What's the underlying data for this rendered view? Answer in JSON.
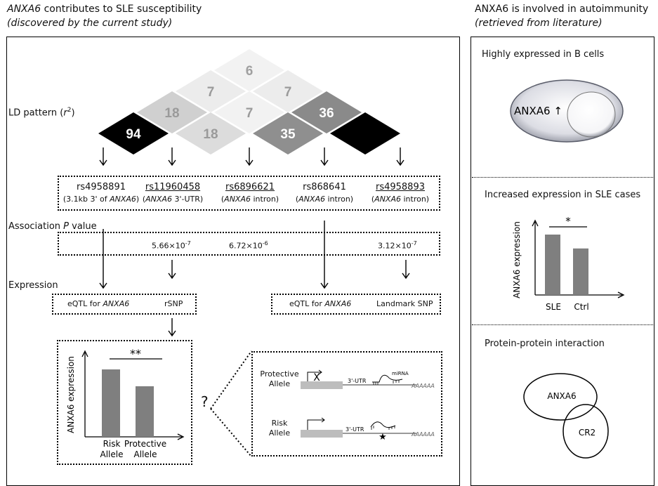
{
  "left_header": {
    "gene": "ANXA6",
    "title_rest": " contributes to SLE susceptibility",
    "subtitle": "(discovered by the current study)"
  },
  "right_header": {
    "title": "ANXA6 is involved in autoimmunity",
    "subtitle": "(retrieved from literature)"
  },
  "ld": {
    "label": "LD pattern (",
    "label_r": "r",
    "label_sup": "2",
    "label_close": ")",
    "values": {
      "top": "6",
      "r2a": "7",
      "r2b": "7",
      "r3a": "18",
      "r3b": "7",
      "r3c": "36",
      "r4a": "94",
      "r4b": "18",
      "r4c": "35",
      "r4d": ""
    }
  },
  "snps": [
    {
      "id": "rs4958891",
      "note_pre": "(3.1kb 3' of ",
      "note_gene": "ANXA6",
      "note_post": ")",
      "underline": false
    },
    {
      "id": "rs11960458",
      "note_pre": "(",
      "note_gene": "ANXA6",
      "note_post": " 3'-UTR)",
      "underline": true
    },
    {
      "id": "rs6896621",
      "note_pre": "(",
      "note_gene": "ANXA6",
      "note_post": " intron)",
      "underline": true
    },
    {
      "id": "rs868641",
      "note_pre": "(",
      "note_gene": "ANXA6",
      "note_post": " intron)",
      "underline": false
    },
    {
      "id": "rs4958893",
      "note_pre": "(",
      "note_gene": "ANXA6",
      "note_post": " intron)",
      "underline": true
    }
  ],
  "association": {
    "label_pre": "Association ",
    "label_p": "P",
    "label_post": " value",
    "p1": "5.66×10",
    "e1": "-7",
    "p2": "6.72×10",
    "e2": "-6",
    "p3": "3.12×10",
    "e3": "-7"
  },
  "expression": {
    "label": "Expression",
    "eqtl_pre": "eQTL for ",
    "eqtl_gene": "ANXA6",
    "rsnp": "rSNP",
    "landmark": "Landmark SNP"
  },
  "bar_left": {
    "ylabel": "ANXA6 expression",
    "sig": "**",
    "cat1": "Risk",
    "cat1b": "Allele",
    "cat2": "Protective",
    "cat2b": "Allele"
  },
  "question": "?",
  "mech": {
    "protective": "Protective",
    "protective2": "Allele",
    "risk": "Risk",
    "risk2": "Allele",
    "utr": "3'-UTR",
    "mirna": "miRNA",
    "polya": "AAAAAA",
    "x": "X"
  },
  "right": {
    "sec1": "Highly expressed in B cells",
    "cell_label": "ANXA6 ↑",
    "sec2": "Increased expression in SLE cases",
    "ylabel2": "ANXA6 expression",
    "sig2": "*",
    "c1": "SLE",
    "c2": "Ctrl",
    "sec3": "Protein-protein interaction",
    "p1": "ANXA6",
    "p2": "CR2"
  },
  "chart_data": [
    {
      "type": "bar",
      "categories": [
        "Risk Allele",
        "Protective Allele"
      ],
      "values": [
        1.0,
        0.75
      ],
      "ylabel": "ANXA6 expression"
    },
    {
      "type": "bar",
      "categories": [
        "SLE",
        "Ctrl"
      ],
      "values": [
        1.0,
        0.77
      ],
      "ylabel": "ANXA6 expression"
    }
  ]
}
